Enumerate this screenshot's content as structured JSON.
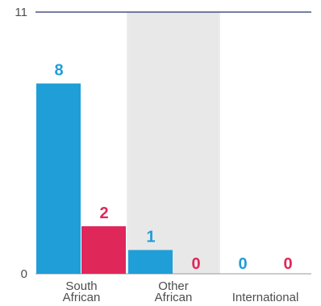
{
  "chart_data": {
    "type": "bar",
    "categories": [
      [
        "South",
        "African"
      ],
      [
        "Other",
        "African"
      ],
      [
        "International"
      ]
    ],
    "series": [
      {
        "values": [
          8,
          1,
          0
        ],
        "color": "#1f9ed8"
      },
      {
        "values": [
          2,
          0,
          0
        ],
        "color": "#e0275a"
      }
    ],
    "ylim": [
      0,
      11
    ],
    "y_ticks": [
      "0",
      "11"
    ],
    "highlight_band_category_index": 1,
    "highlight_band_color": "#e8e8e8",
    "top_rule_color": "#23306e",
    "grid": false,
    "title": "",
    "xlabel": "",
    "ylabel": ""
  }
}
